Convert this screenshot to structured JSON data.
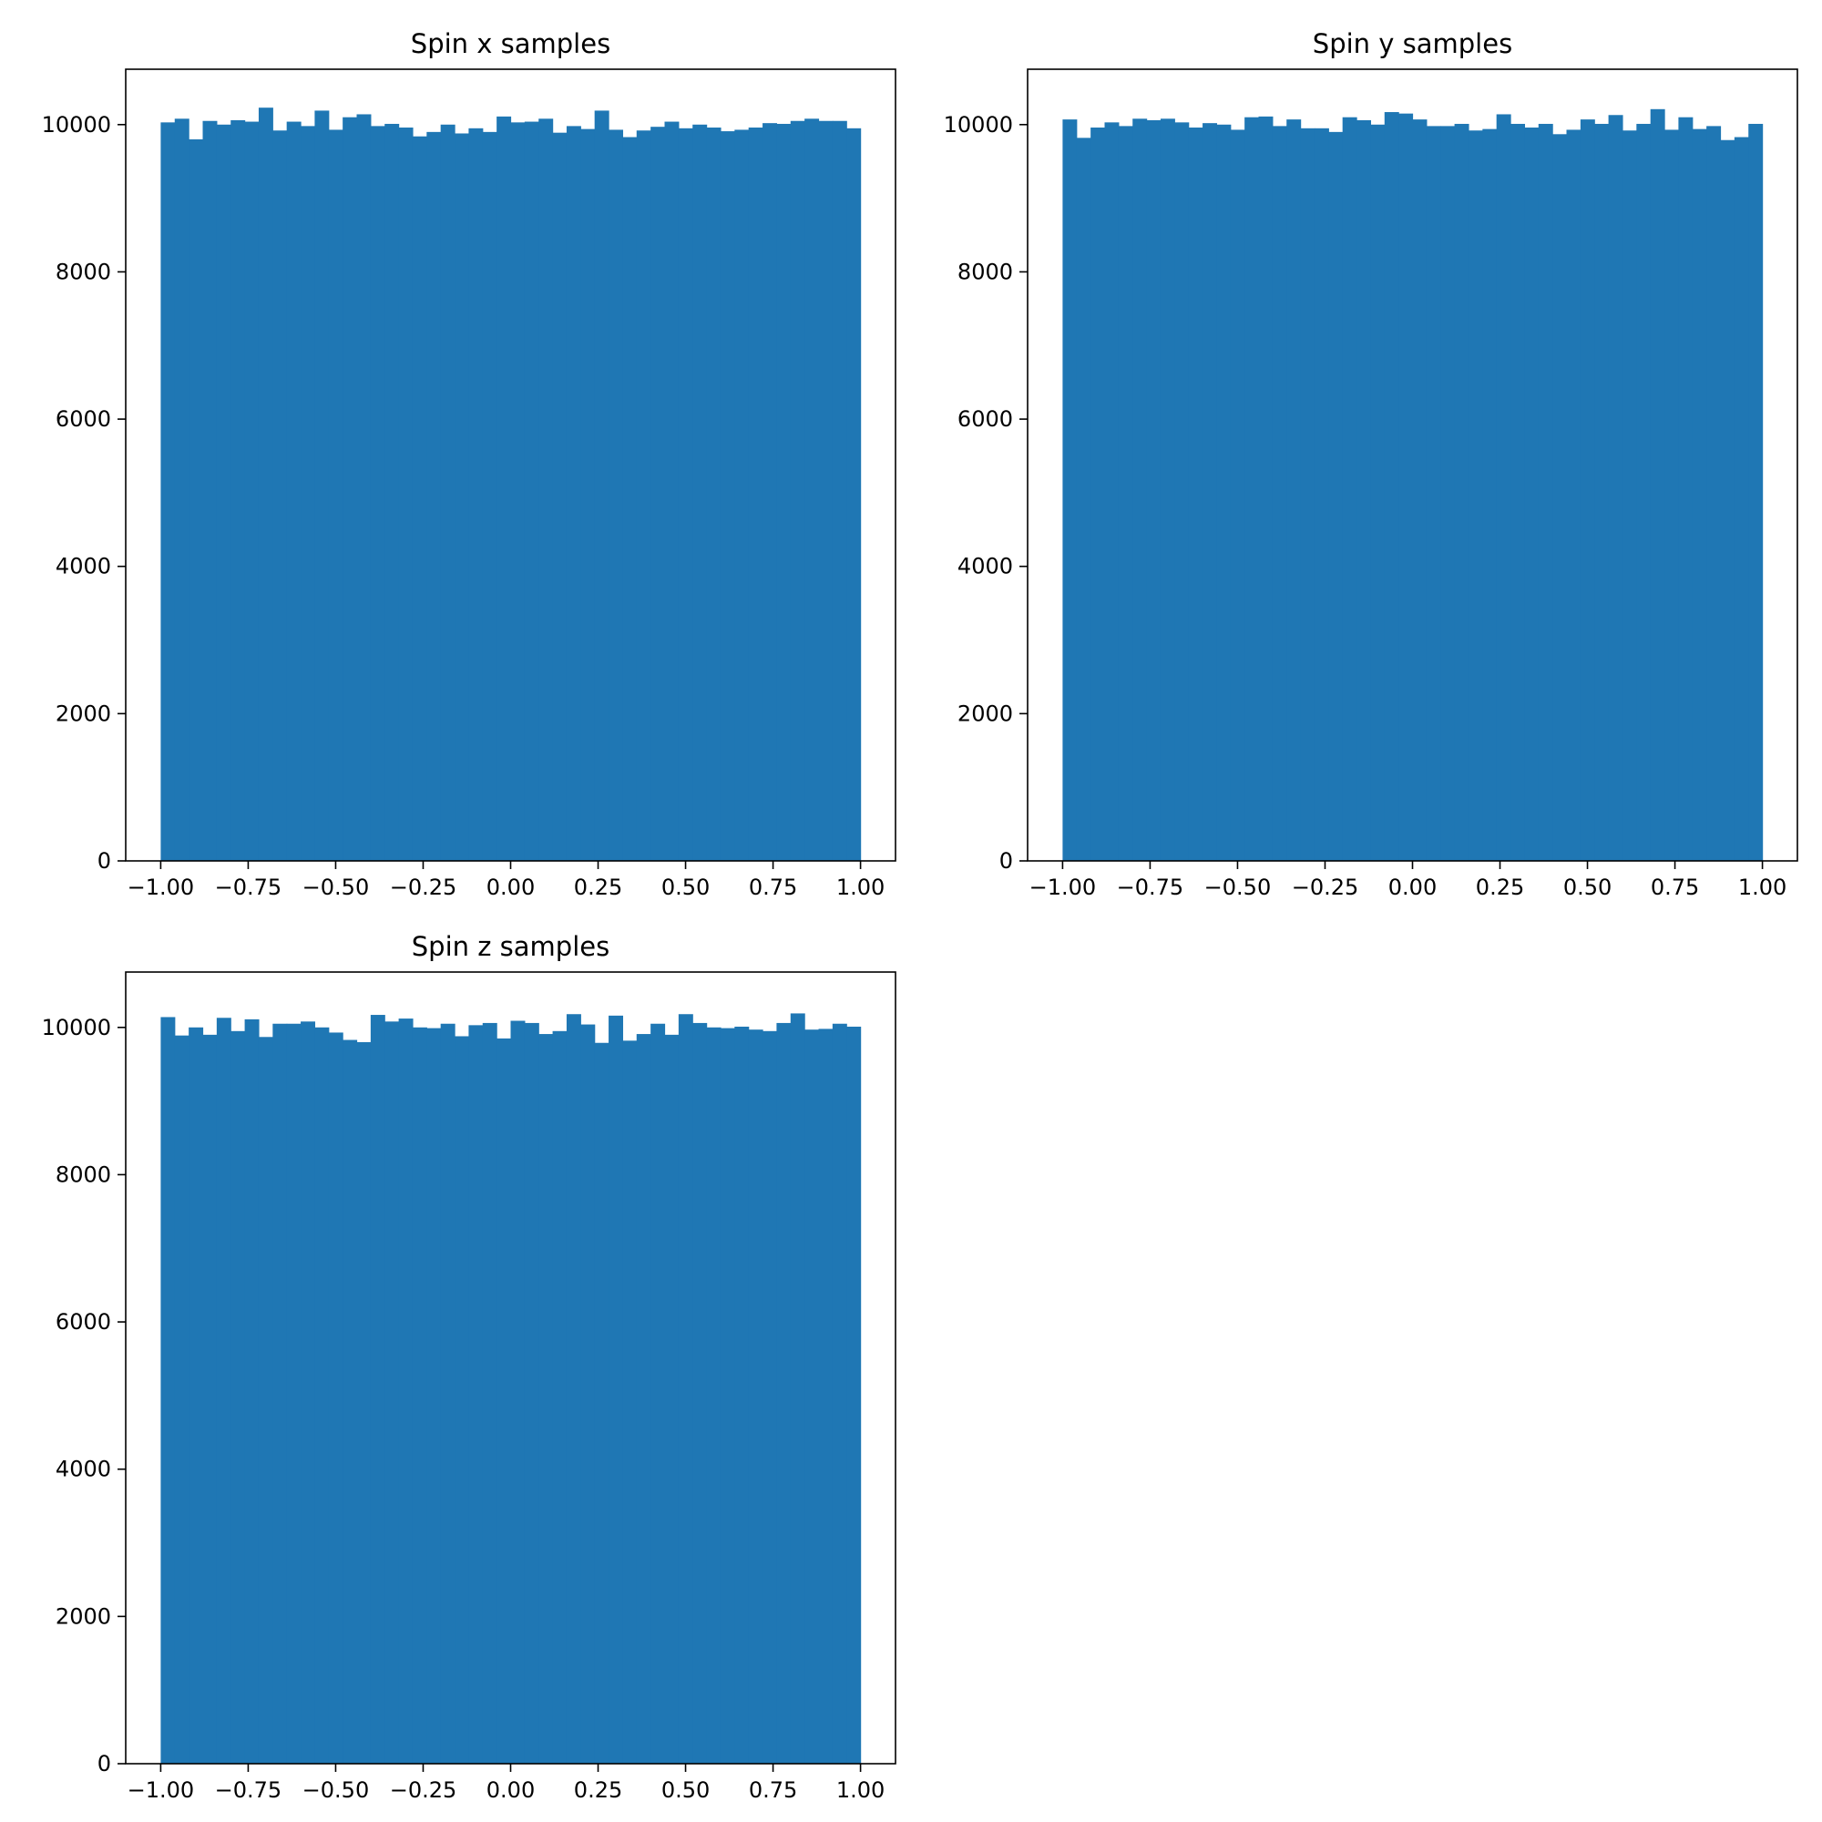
{
  "chart_data": [
    {
      "type": "bar",
      "title": "Spin x samples",
      "xlim": [
        -1.1,
        1.1
      ],
      "ylim": [
        0,
        10752
      ],
      "xticks": [
        "−1.00",
        "−0.75",
        "−0.50",
        "−0.25",
        "0.00",
        "0.25",
        "0.50",
        "0.75",
        "1.00"
      ],
      "yticks": [
        "0",
        "2000",
        "4000",
        "6000",
        "8000",
        "10000"
      ],
      "bin_range": [
        -1.0,
        1.0
      ],
      "bar_color": "#1f77b4",
      "values": [
        10030,
        10080,
        9800,
        10050,
        10000,
        10060,
        10040,
        10230,
        9920,
        10040,
        9980,
        10190,
        9930,
        10100,
        10140,
        9980,
        10010,
        9960,
        9840,
        9900,
        10000,
        9880,
        9950,
        9900,
        10110,
        10030,
        10040,
        10080,
        9890,
        9980,
        9940,
        10190,
        9930,
        9830,
        9920,
        9970,
        10040,
        9950,
        10000,
        9960,
        9910,
        9930,
        9960,
        10020,
        10010,
        10050,
        10080,
        10050,
        10050,
        9950
      ]
    },
    {
      "type": "bar",
      "title": "Spin y samples",
      "xlim": [
        -1.1,
        1.1
      ],
      "ylim": [
        0,
        10752
      ],
      "xticks": [
        "−1.00",
        "−0.75",
        "−0.50",
        "−0.25",
        "0.00",
        "0.25",
        "0.50",
        "0.75",
        "1.00"
      ],
      "yticks": [
        "0",
        "2000",
        "4000",
        "6000",
        "8000",
        "10000"
      ],
      "bin_range": [
        -1.0,
        1.0
      ],
      "bar_color": "#1f77b4",
      "values": [
        10070,
        9820,
        9960,
        10030,
        9980,
        10080,
        10060,
        10080,
        10030,
        9960,
        10020,
        10000,
        9930,
        10100,
        10110,
        9980,
        10070,
        9950,
        9950,
        9900,
        10100,
        10060,
        10000,
        10170,
        10150,
        10070,
        9980,
        9980,
        10010,
        9920,
        9940,
        10140,
        10010,
        9960,
        10010,
        9870,
        9930,
        10070,
        10010,
        10130,
        9920,
        10010,
        10210,
        9930,
        10100,
        9940,
        9980,
        9790,
        9830,
        10010
      ]
    },
    {
      "type": "bar",
      "title": "Spin z samples",
      "xlim": [
        -1.1,
        1.1
      ],
      "ylim": [
        0,
        10752
      ],
      "xticks": [
        "−1.00",
        "−0.75",
        "−0.50",
        "−0.25",
        "0.00",
        "0.25",
        "0.50",
        "0.75",
        "1.00"
      ],
      "yticks": [
        "0",
        "2000",
        "4000",
        "6000",
        "8000",
        "10000"
      ],
      "bin_range": [
        -1.0,
        1.0
      ],
      "bar_color": "#1f77b4",
      "values": [
        10140,
        9890,
        10000,
        9900,
        10130,
        9950,
        10110,
        9870,
        10050,
        10050,
        10080,
        10000,
        9930,
        9830,
        9800,
        10170,
        10080,
        10120,
        10000,
        9990,
        10050,
        9880,
        10030,
        10060,
        9850,
        10090,
        10060,
        9910,
        9950,
        10180,
        10040,
        9790,
        10160,
        9820,
        9910,
        10050,
        9900,
        10180,
        10060,
        10000,
        9990,
        10010,
        9970,
        9950,
        10060,
        10190,
        9970,
        9980,
        10050,
        10010
      ]
    }
  ]
}
